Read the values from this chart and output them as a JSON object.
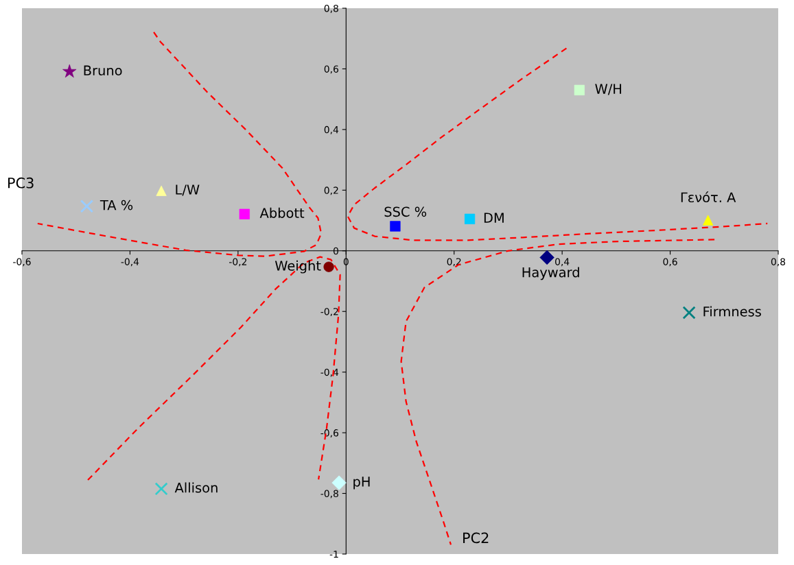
{
  "chart_data": {
    "type": "scatter",
    "xlabel": "PC2",
    "ylabel": "PC3",
    "xlim": [
      -0.6,
      0.8
    ],
    "ylim": [
      -1,
      0.8
    ],
    "xticks": [
      {
        "value": -0.6,
        "label": "-0,6"
      },
      {
        "value": -0.4,
        "label": "-0,4"
      },
      {
        "value": -0.2,
        "label": "-0,2"
      },
      0,
      {
        "value": 0.2,
        "label": "0,2"
      },
      {
        "value": 0.4,
        "label": "0,4"
      },
      {
        "value": 0.6,
        "label": "0,6"
      },
      {
        "value": 0.8,
        "label": "0,8"
      }
    ],
    "yticks": [
      -1,
      {
        "value": -0.8,
        "label": "-0,8"
      },
      {
        "value": -0.6,
        "label": "-0,6"
      },
      {
        "value": -0.4,
        "label": "-0,4"
      },
      {
        "value": -0.2,
        "label": "-0,2"
      },
      0,
      {
        "value": 0.2,
        "label": "0,2"
      },
      {
        "value": 0.4,
        "label": "0,4"
      },
      {
        "value": 0.6,
        "label": "0,6"
      },
      {
        "value": 0.8,
        "label": "0,8"
      }
    ],
    "grid": false,
    "legend": false,
    "series": [
      {
        "name": "Bruno",
        "color": "#800080",
        "marker": "star",
        "x": [
          -0.512
        ],
        "values": [
          0.591
        ]
      },
      {
        "name": "W/H",
        "color": "#ccffcc",
        "marker": "square",
        "x": [
          0.432
        ],
        "values": [
          0.53
        ]
      },
      {
        "name": "L/W",
        "color": "#ffff99",
        "marker": "triangle",
        "x": [
          -0.342
        ],
        "values": [
          0.198
        ]
      },
      {
        "name": "TA %",
        "color": "#99ccff",
        "marker": "cross",
        "x": [
          -0.48
        ],
        "values": [
          0.147
        ]
      },
      {
        "name": "Abbott",
        "color": "#ff00ff",
        "marker": "square",
        "x": [
          -0.188
        ],
        "values": [
          0.121
        ]
      },
      {
        "name": "SSC %",
        "color": "#0000ff",
        "marker": "square",
        "x": [
          0.091
        ],
        "values": [
          0.081
        ]
      },
      {
        "name": "DM",
        "color": "#00ccff",
        "marker": "square",
        "x": [
          0.229
        ],
        "values": [
          0.105
        ]
      },
      {
        "name": "Γενότ. Α",
        "color": "#ffff00",
        "marker": "triangle",
        "x": [
          0.67
        ],
        "values": [
          0.101
        ]
      },
      {
        "name": "Hayward",
        "color": "#000080",
        "marker": "diamond",
        "x": [
          0.372
        ],
        "values": [
          -0.022
        ]
      },
      {
        "name": "Weight",
        "color": "#800000",
        "marker": "circle",
        "x": [
          -0.032
        ],
        "values": [
          -0.053
        ]
      },
      {
        "name": "Firmness",
        "color": "#008080",
        "marker": "cross",
        "x": [
          0.635
        ],
        "values": [
          -0.204
        ]
      },
      {
        "name": "pH",
        "color": "#ccffff",
        "marker": "diamond",
        "x": [
          -0.013
        ],
        "values": [
          -0.765
        ]
      },
      {
        "name": "Allison",
        "color": "#33cccc",
        "marker": "cross",
        "x": [
          -0.342
        ],
        "values": [
          -0.785
        ]
      },
      {
        "type": "line",
        "color": "#ff0000",
        "line_style": "dashed",
        "marker": "none",
        "x": [
          -0.356,
          -0.344,
          -0.258,
          -0.186,
          -0.118,
          -0.067,
          -0.052,
          -0.046,
          -0.055,
          -0.078,
          -0.15,
          -0.199,
          -0.297,
          -0.443,
          -0.571
        ],
        "values": [
          0.721,
          0.69,
          0.525,
          0.4,
          0.273,
          0.141,
          0.108,
          0.057,
          0.02,
          -0.002,
          -0.018,
          -0.015,
          0.002,
          0.048,
          0.09
        ]
      },
      {
        "type": "line",
        "color": "#ff0000",
        "line_style": "dashed",
        "marker": "none",
        "x": [
          0.408,
          0.327,
          0.25,
          0.174,
          0.111,
          0.053,
          0.015,
          0.003,
          0.015,
          0.053,
          0.123,
          0.225,
          0.327,
          0.454,
          0.581,
          0.708,
          0.78
        ],
        "values": [
          0.668,
          0.569,
          0.47,
          0.371,
          0.284,
          0.207,
          0.152,
          0.114,
          0.075,
          0.048,
          0.035,
          0.035,
          0.044,
          0.057,
          0.068,
          0.081,
          0.09
        ]
      },
      {
        "type": "line",
        "color": "#ff0000",
        "line_style": "dashed",
        "marker": "none",
        "x": [
          0.682,
          0.504,
          0.394,
          0.3,
          0.208,
          0.145,
          0.111,
          0.102,
          0.111,
          0.13,
          0.155,
          0.18,
          0.194
        ],
        "values": [
          0.037,
          0.031,
          0.022,
          0.0,
          -0.046,
          -0.121,
          -0.233,
          -0.365,
          -0.497,
          -0.629,
          -0.76,
          -0.892,
          -0.969
        ]
      },
      {
        "type": "line",
        "color": "#ff0000",
        "line_style": "dashed",
        "marker": "none",
        "x": [
          -0.478,
          -0.385,
          -0.283,
          -0.194,
          -0.131,
          -0.078,
          -0.048,
          -0.028,
          -0.011,
          -0.014,
          -0.024,
          -0.036,
          -0.051
        ],
        "values": [
          -0.756,
          -0.585,
          -0.409,
          -0.251,
          -0.127,
          -0.04,
          -0.02,
          -0.029,
          -0.079,
          -0.211,
          -0.409,
          -0.585,
          -0.754
        ]
      }
    ]
  }
}
